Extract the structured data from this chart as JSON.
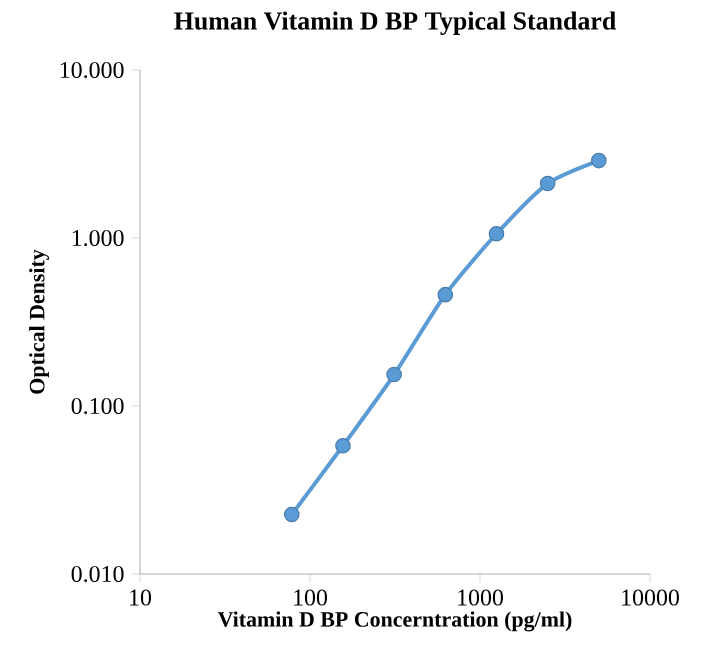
{
  "chart_data": {
    "type": "line",
    "title": "Human Vitamin D BP Typical Standard",
    "xlabel": "Vitamin D BP Concerntration (pg/ml)",
    "ylabel": "Optical Density",
    "log": "xy",
    "marker": "circle",
    "line_style": "solid",
    "grid": false,
    "xlim": [
      10,
      10000
    ],
    "xticks": [
      10,
      100,
      1000,
      10000
    ],
    "ylim": [
      0.01,
      10
    ],
    "yticks": [
      {
        "value": 0.01,
        "label": "0.010"
      },
      {
        "value": 0.1,
        "label": "0.100"
      },
      {
        "value": 1,
        "label": "1.000"
      },
      {
        "value": 10,
        "label": "10.000"
      }
    ],
    "x": [
      78.125,
      156.25,
      312.5,
      625,
      1250,
      2500,
      5000
    ],
    "series": [
      {
        "color": "#5b9bd5",
        "values": [
          0.0226,
          0.058,
          0.154,
          0.46,
          1.06,
          2.11,
          2.89
        ]
      }
    ]
  }
}
